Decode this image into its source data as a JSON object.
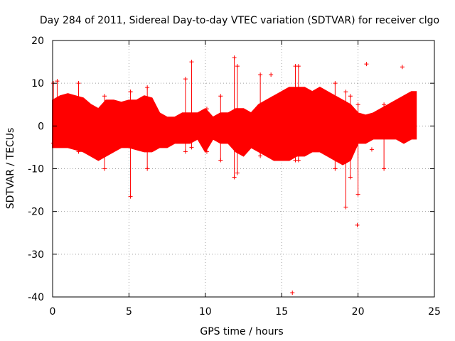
{
  "chart_data": {
    "type": "scatter",
    "title": "Day 284 of 2011, Sidereal Day-to-day VTEC variation (SDTVAR) for receiver clgo",
    "xlabel": "GPS time / hours",
    "ylabel": "SDTVAR / TECUs",
    "xlim": [
      0,
      25
    ],
    "ylim": [
      -40,
      20
    ],
    "xticks": [
      0,
      5,
      10,
      15,
      20,
      25
    ],
    "yticks": [
      -40,
      -30,
      -20,
      -10,
      0,
      10,
      20
    ],
    "grid": true,
    "marker": "+",
    "color": "#ff0000",
    "envelope": {
      "x": [
        0,
        0.5,
        1,
        1.5,
        2,
        2.5,
        3,
        3.5,
        4,
        4.5,
        5,
        5.5,
        6,
        6.5,
        7,
        7.5,
        8,
        8.5,
        9,
        9.5,
        10,
        10.5,
        11,
        11.5,
        12,
        12.5,
        13,
        13.5,
        14,
        14.5,
        15,
        15.5,
        16,
        16.5,
        17,
        17.5,
        18,
        18.5,
        19,
        19.5,
        20,
        20.5,
        21,
        21.5,
        22,
        22.5,
        23,
        23.5,
        23.8
      ],
      "upper": [
        6,
        7,
        7.5,
        7,
        6.5,
        5,
        4,
        6,
        6,
        5.5,
        6,
        6,
        7,
        6.5,
        3,
        2,
        2,
        3,
        3,
        3,
        4,
        2,
        3,
        3,
        4,
        4,
        3,
        5,
        6,
        7,
        8,
        9,
        9,
        9,
        8,
        9,
        8,
        7,
        6,
        5,
        3,
        2.5,
        3,
        4,
        5,
        6,
        7,
        8,
        8
      ],
      "lower": [
        -5,
        -5,
        -5,
        -5.5,
        -6,
        -7,
        -8,
        -7,
        -6,
        -5,
        -5,
        -5.5,
        -6,
        -6,
        -5,
        -5,
        -4,
        -4,
        -4,
        -3,
        -6,
        -3,
        -4,
        -4,
        -6,
        -7,
        -5,
        -6,
        -7,
        -8,
        -8,
        -8,
        -7,
        -7,
        -6,
        -6,
        -7,
        -8,
        -9,
        -8,
        -4,
        -4,
        -3,
        -3,
        -3,
        -3,
        -4,
        -3,
        -3
      ]
    },
    "spikes": [
      {
        "x": 0.05,
        "min": -4,
        "max": 10
      },
      {
        "x": 0.3,
        "min": -4,
        "max": 10.5
      },
      {
        "x": 1.7,
        "min": -6,
        "max": 10
      },
      {
        "x": 3.4,
        "min": -10,
        "max": 7
      },
      {
        "x": 5.1,
        "min": -16.5,
        "max": 8
      },
      {
        "x": 6.2,
        "min": -10,
        "max": 9
      },
      {
        "x": 8.7,
        "min": -6,
        "max": 11
      },
      {
        "x": 9.1,
        "min": -5,
        "max": 15
      },
      {
        "x": 10.1,
        "min": -6,
        "max": 4
      },
      {
        "x": 11.0,
        "min": -8,
        "max": 7
      },
      {
        "x": 11.9,
        "min": -12,
        "max": 16
      },
      {
        "x": 12.1,
        "min": -11,
        "max": 14
      },
      {
        "x": 13.6,
        "min": -7,
        "max": 12
      },
      {
        "x": 15.9,
        "min": -8,
        "max": 14
      },
      {
        "x": 16.1,
        "min": -8,
        "max": 14
      },
      {
        "x": 18.5,
        "min": -10,
        "max": 10
      },
      {
        "x": 19.2,
        "min": -19,
        "max": 8
      },
      {
        "x": 19.5,
        "min": -12,
        "max": 7
      },
      {
        "x": 20.0,
        "min": -16,
        "max": 5
      },
      {
        "x": 21.7,
        "min": -10,
        "max": 5
      }
    ],
    "outliers": [
      {
        "x": 15.7,
        "y": -39
      },
      {
        "x": 19.95,
        "y": -23.2
      },
      {
        "x": 20.55,
        "y": 14.5
      },
      {
        "x": 22.9,
        "y": 13.8
      },
      {
        "x": 14.3,
        "y": 12
      },
      {
        "x": 5.1,
        "y": 8
      },
      {
        "x": 20.9,
        "y": -5.5
      }
    ]
  }
}
